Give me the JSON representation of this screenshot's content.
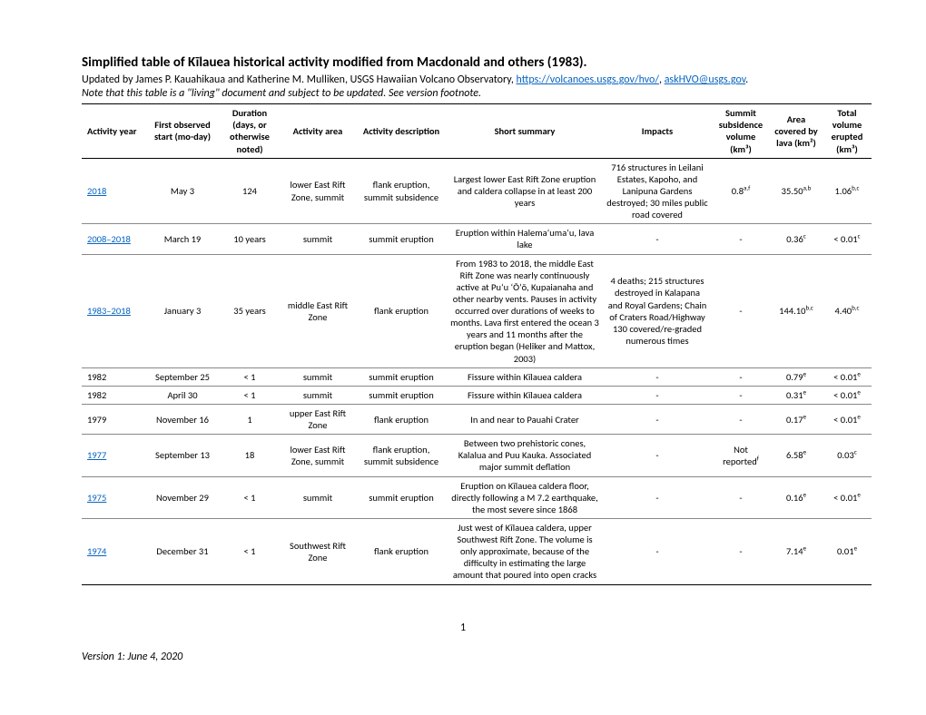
{
  "header": {
    "title": "Simplified table of Kīlauea historical activity modified from Macdonald and others (1983).",
    "updated_prefix": "Updated by James P. Kauahikaua and Katherine M. Mulliken, USGS Hawaiian Volcano Observatory, ",
    "link1_text": "https://volcanoes.usgs.gov/hvo/",
    "sep": ", ",
    "link2_text": "askHVO@usgs.gov",
    "suffix": ".",
    "note": "Note that this table is a \"living\" document and subject to be updated. See version footnote."
  },
  "columns": {
    "year": "Activity year",
    "start": "First observed start (mo-day)",
    "duration": "Duration (days, or otherwise noted)",
    "area": "Activity area",
    "desc": "Activity description",
    "summary": "Short summary",
    "impacts": "Impacts",
    "subs": "Summit subsidence volume (km³)",
    "covered": "Area covered by lava (km²)",
    "volume": "Total volume erupted (km³)"
  },
  "rows": [
    {
      "year": "2018",
      "year_link": true,
      "start": "May 3",
      "dur": "124",
      "area": "lower East Rift Zone, summit",
      "desc": "flank eruption, summit subsidence",
      "summary": "Largest lower East Rift Zone eruption and caldera collapse in at least 200 years",
      "impacts": "716 structures in Leilani Estates, Kapoho, and Lanipuna Gardens destroyed; 30 miles public road covered",
      "subs": "0.8",
      "subs_sup": "a,f",
      "cov": "35.50",
      "cov_sup": "a,b",
      "vol": "1.06",
      "vol_sup": "b,c"
    },
    {
      "year": "2008–2018",
      "year_link": true,
      "start": "March 19",
      "dur": "10 years",
      "area": "summit",
      "desc": "summit eruption",
      "summary": "Eruption within Halemaʻumaʻu, lava lake",
      "impacts": "-",
      "subs": "-",
      "subs_sup": "",
      "cov": "0.36",
      "cov_sup": "c",
      "vol": "< 0.01",
      "vol_sup": "c"
    },
    {
      "year": "1983–2018",
      "year_link": true,
      "start": "January 3",
      "dur": "35 years",
      "area": "middle East Rift Zone",
      "desc": "flank eruption",
      "summary": "From 1983 to 2018, the middle East Rift Zone was nearly continuously active at Puʻu ʻŌʻō, Kupaianaha and other nearby vents. Pauses in activity occurred over durations of weeks to months. Lava first entered the ocean 3 years and 11 months after the eruption began (Heliker and Mattox, 2003)",
      "impacts": "4 deaths; 215 structures destroyed in Kalapana and Royal Gardens; Chain of Craters Road/Highway 130 covered/re-graded numerous times",
      "subs": "-",
      "subs_sup": "",
      "cov": "144.10",
      "cov_sup": "b,c",
      "vol": "4.40",
      "vol_sup": "b,c"
    },
    {
      "year": "1982",
      "year_link": false,
      "start": "September 25",
      "dur": "< 1",
      "area": "summit",
      "desc": "summit eruption",
      "summary": "Fissure within Kīlauea caldera",
      "impacts": "-",
      "subs": "-",
      "subs_sup": "",
      "cov": "0.79",
      "cov_sup": "e",
      "vol": "< 0.01",
      "vol_sup": "e"
    },
    {
      "year": "1982",
      "year_link": false,
      "start": "April 30",
      "dur": "< 1",
      "area": "summit",
      "desc": "summit eruption",
      "summary": "Fissure within Kīlauea caldera",
      "impacts": "-",
      "subs": "-",
      "subs_sup": "",
      "cov": "0.31",
      "cov_sup": "e",
      "vol": "< 0.01",
      "vol_sup": "e"
    },
    {
      "year": "1979",
      "year_link": false,
      "start": "November 16",
      "dur": "1",
      "area": "upper East Rift Zone",
      "desc": "flank eruption",
      "summary": "In and near to Pauahi Crater",
      "impacts": "-",
      "subs": "-",
      "subs_sup": "",
      "cov": "0.17",
      "cov_sup": "e",
      "vol": "< 0.01",
      "vol_sup": "e"
    },
    {
      "year": "1977",
      "year_link": true,
      "start": "September 13",
      "dur": "18",
      "area": "lower East Rift Zone, summit",
      "desc": "flank eruption, summit subsidence",
      "summary": "Between two prehistoric cones, Kalalua and Puu Kauka. Associated major summit deflation",
      "impacts": "-",
      "subs": "Not reported",
      "subs_sup": "f",
      "cov": "6.58",
      "cov_sup": "e",
      "vol": "0.03",
      "vol_sup": "c"
    },
    {
      "year": "1975",
      "year_link": true,
      "start": "November 29",
      "dur": "< 1",
      "area": "summit",
      "desc": "summit eruption",
      "summary": "Eruption on Kīlauea caldera floor, directly following a M 7.2 earthquake, the most severe since 1868",
      "impacts": "-",
      "subs": "-",
      "subs_sup": "",
      "cov": "0.16",
      "cov_sup": "e",
      "vol": "< 0.01",
      "vol_sup": "e"
    },
    {
      "year": "1974",
      "year_link": true,
      "start": "December 31",
      "dur": "< 1",
      "area": "Southwest Rift Zone",
      "desc": "flank eruption",
      "summary": "Just west of Kīlauea caldera, upper Southwest Rift Zone. The volume is only approximate, because of the difficulty in estimating the large amount that poured into open cracks",
      "impacts": "-",
      "subs": "-",
      "subs_sup": "",
      "cov": "7.14",
      "cov_sup": "e",
      "vol": "0.01",
      "vol_sup": "e"
    }
  ],
  "footer": {
    "page": "1",
    "version": "Version 1: June 4, 2020"
  }
}
